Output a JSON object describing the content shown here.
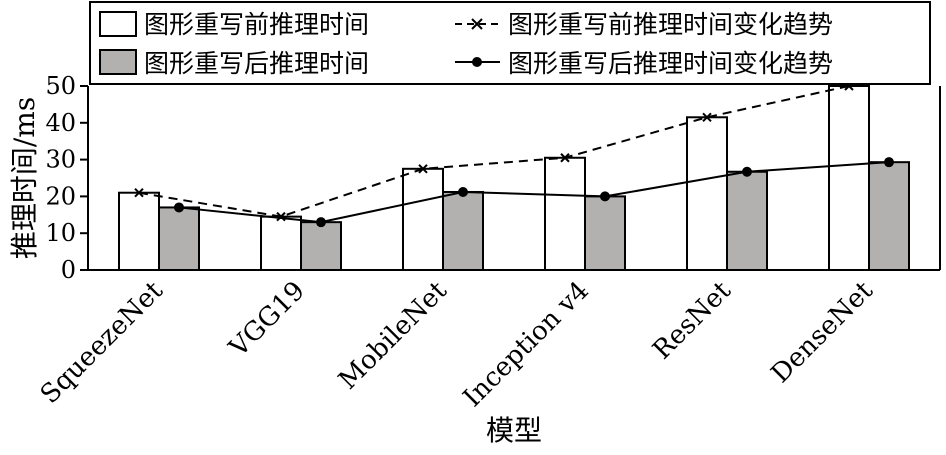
{
  "chart_data": {
    "type": "bar",
    "xlabel": "模型",
    "ylabel": "推理时间/ms",
    "ylim": [
      0,
      50
    ],
    "yticks": [
      0,
      10,
      20,
      30,
      40,
      50
    ],
    "grid": false,
    "legend_position": "top",
    "categories": [
      "SqueezeNet",
      "VGG19",
      "MobileNet",
      "Inception v4",
      "ResNet",
      "DenseNet"
    ],
    "series": [
      {
        "name": "图形重写前推理时间",
        "kind": "bar",
        "color": "#ffffff",
        "values": [
          21,
          14.5,
          27.5,
          30.5,
          41.5,
          50
        ]
      },
      {
        "name": "图形重写后推理时间",
        "kind": "bar",
        "color": "#b3b0b0",
        "values": [
          17,
          13,
          21.2,
          20,
          26.7,
          29.3
        ]
      },
      {
        "name": "图形重写前推理时间变化趋势",
        "kind": "line",
        "style": "dashed",
        "marker": "x",
        "values": [
          21,
          14.5,
          27.5,
          30.5,
          41.5,
          50
        ]
      },
      {
        "name": "图形重写后推理时间变化趋势",
        "kind": "line",
        "style": "solid",
        "marker": "dot",
        "values": [
          17,
          13,
          21.2,
          20,
          26.7,
          29.3
        ]
      }
    ]
  }
}
